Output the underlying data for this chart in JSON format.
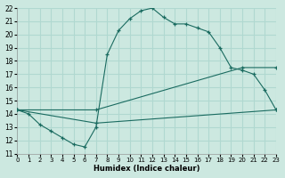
{
  "xlabel": "Humidex (Indice chaleur)",
  "xlim": [
    0,
    23
  ],
  "ylim": [
    11,
    22
  ],
  "xticks": [
    0,
    1,
    2,
    3,
    4,
    5,
    6,
    7,
    8,
    9,
    10,
    11,
    12,
    13,
    14,
    15,
    16,
    17,
    18,
    19,
    20,
    21,
    22,
    23
  ],
  "yticks": [
    11,
    12,
    13,
    14,
    15,
    16,
    17,
    18,
    19,
    20,
    21,
    22
  ],
  "bg_color": "#cce8e0",
  "line_color": "#1a6b60",
  "grid_color": "#b0d8d0",
  "curve_x": [
    0,
    1,
    2,
    3,
    4,
    5,
    6,
    7,
    8,
    9,
    10,
    11,
    12,
    13,
    14,
    15,
    16,
    17,
    18,
    19,
    20,
    21,
    22,
    23
  ],
  "curve_y": [
    14.3,
    14.0,
    13.2,
    12.7,
    12.2,
    11.7,
    11.5,
    13.0,
    18.5,
    20.3,
    21.2,
    21.8,
    22.0,
    21.3,
    20.8,
    20.8,
    20.5,
    20.2,
    19.0,
    17.5,
    17.3,
    17.0,
    15.8,
    14.3
  ],
  "line2_x": [
    0,
    7,
    20,
    23
  ],
  "line2_y": [
    14.3,
    14.3,
    17.5,
    17.5
  ],
  "line3_x": [
    0,
    7,
    23
  ],
  "line3_y": [
    14.3,
    13.3,
    14.3
  ]
}
